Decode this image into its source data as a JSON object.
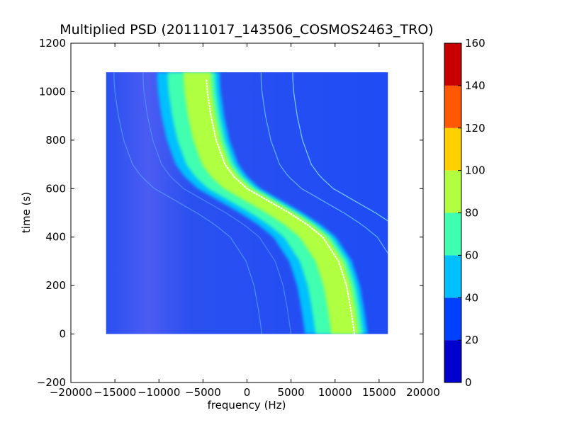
{
  "chart_data": {
    "type": "heatmap",
    "title": "Multiplied PSD (20111017_143506_COSMOS2463_TRO)",
    "xlabel": "frequency (Hz)",
    "ylabel": "time (s)",
    "xlim": [
      -20000,
      20000
    ],
    "ylim": [
      -200,
      1200
    ],
    "xticks": [
      -20000,
      -15000,
      -10000,
      -5000,
      0,
      5000,
      10000,
      15000,
      20000
    ],
    "xtick_labels": [
      "−20000",
      "−15000",
      "−10000",
      "−5000",
      "0",
      "5000",
      "10000",
      "15000",
      "20000"
    ],
    "yticks": [
      -200,
      0,
      200,
      400,
      600,
      800,
      1000,
      1200
    ],
    "ytick_labels": [
      "−200",
      "0",
      "200",
      "400",
      "600",
      "800",
      "1000",
      "1200"
    ],
    "data_extent": {
      "freq": [
        -16000,
        16000
      ],
      "time": [
        0,
        1080
      ]
    },
    "background_value": 25,
    "colorbar": {
      "min": 0,
      "max": 160,
      "levels": [
        0,
        20,
        40,
        60,
        80,
        100,
        120,
        140,
        160
      ],
      "tick_labels": [
        "0",
        "20",
        "40",
        "60",
        "80",
        "100",
        "120",
        "140",
        "160"
      ],
      "colors": [
        "#0000cd",
        "#0040ff",
        "#00c0ff",
        "#40ffb0",
        "#b0ff40",
        "#ffd000",
        "#ff5800",
        "#c80000"
      ]
    },
    "main_trace": {
      "description": "Doppler curve",
      "points": [
        {
          "t": 0,
          "f": 12200
        },
        {
          "t": 100,
          "f": 11800
        },
        {
          "t": 200,
          "f": 11300
        },
        {
          "t": 300,
          "f": 10400
        },
        {
          "t": 400,
          "f": 8600
        },
        {
          "t": 450,
          "f": 6900
        },
        {
          "t": 500,
          "f": 4800
        },
        {
          "t": 550,
          "f": 2400
        },
        {
          "t": 600,
          "f": 0
        },
        {
          "t": 650,
          "f": -1500
        },
        {
          "t": 700,
          "f": -2500
        },
        {
          "t": 800,
          "f": -3500
        },
        {
          "t": 900,
          "f": -4100
        },
        {
          "t": 1000,
          "f": -4500
        },
        {
          "t": 1050,
          "f": -4600
        }
      ]
    }
  }
}
